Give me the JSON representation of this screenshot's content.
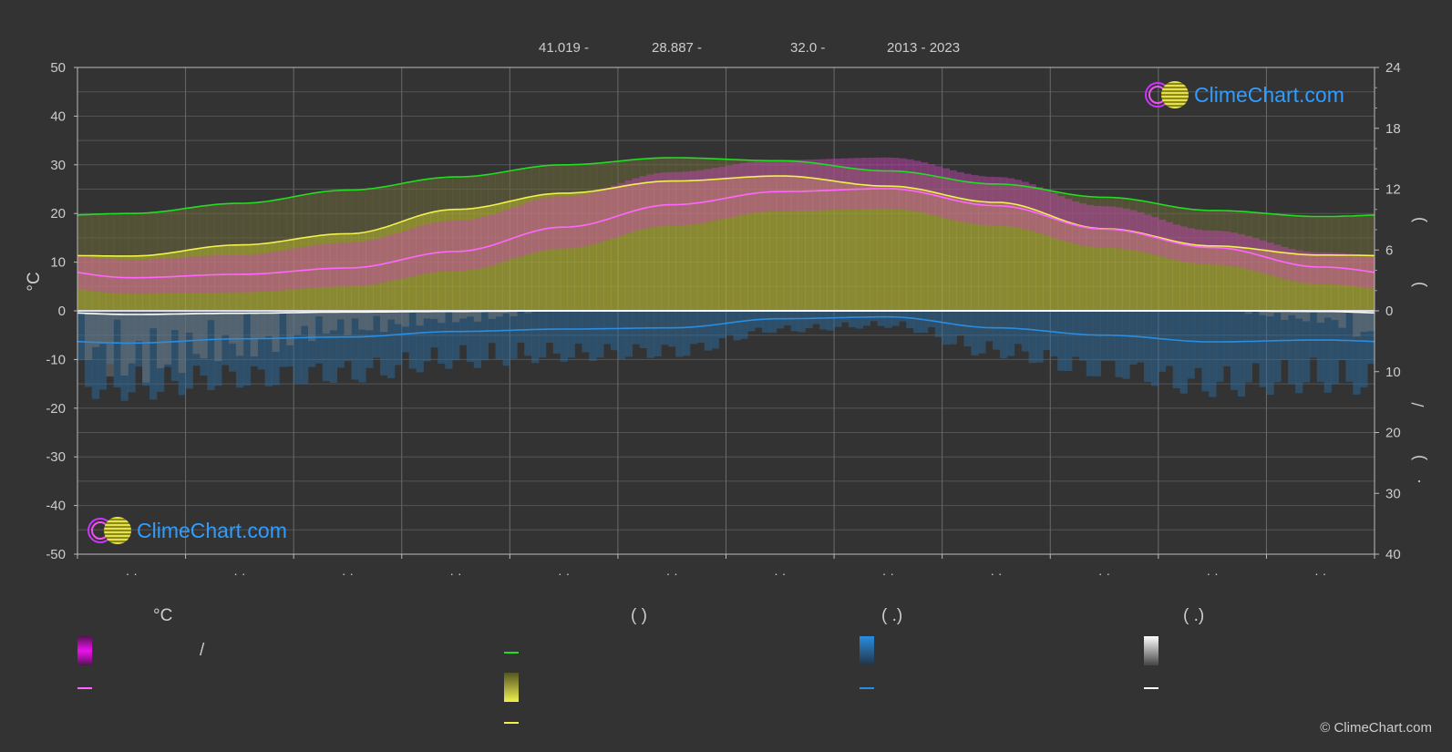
{
  "header": {
    "lat": "41.019 -",
    "lon": "28.887 -",
    "elev": "32.0 -",
    "years": "2013 - 2023"
  },
  "axes": {
    "left_unit": "°C",
    "left_ticks": [
      "50",
      "40",
      "30",
      "20",
      "10",
      "0",
      "-10",
      "-20",
      "-30",
      "-40",
      "-50"
    ],
    "right_top_ticks": [
      "24",
      "18",
      "12",
      "6",
      "0"
    ],
    "right_bottom_ticks": [
      "10",
      "20",
      "30",
      "40"
    ],
    "right_labels": [
      ")",
      ")",
      "/",
      ")",
      "·"
    ],
    "month_labels": [
      "· ·",
      "· ·",
      "· ·",
      "· ·",
      "· ·",
      "· ·",
      "· ·",
      "· ·",
      "· ·",
      "· ·",
      "· ·",
      "· ·"
    ]
  },
  "legend": {
    "col1_title": "°C",
    "col1_sep": "/",
    "col2_title": "(            )",
    "col3_title": "(    .)",
    "col4_title": "(    .)"
  },
  "logos": {
    "top": "ClimeChart.com",
    "bottom": "ClimeChart.com"
  },
  "copyright": "© ClimeChart.com",
  "colors": {
    "background": "#333333",
    "daylight": "#22dd22",
    "sunshine": "#f0f050",
    "temp_mean": "#ff66ff",
    "temp_range": "#dd00dd",
    "rain": "#2a8de0",
    "snow": "#ffffff",
    "sunshine_fill": "#a7a534"
  },
  "chart_data": {
    "type": "line",
    "ylim_left": [
      -50,
      50
    ],
    "ylim_right_top_hours": [
      0,
      24
    ],
    "ylim_right_bottom_mm": [
      0,
      40
    ],
    "x_months": [
      1,
      2,
      3,
      4,
      5,
      6,
      7,
      8,
      9,
      10,
      11,
      12
    ],
    "series": [
      {
        "key": "daylight",
        "axis": "hours",
        "values": [
          9.6,
          10.6,
          11.9,
          13.2,
          14.4,
          15.1,
          14.8,
          13.8,
          12.5,
          11.2,
          9.9,
          9.3
        ]
      },
      {
        "key": "sunshine",
        "axis": "hours",
        "values": [
          5.4,
          6.5,
          7.6,
          10.0,
          11.6,
          12.8,
          13.3,
          12.3,
          10.7,
          8.1,
          6.4,
          5.5
        ]
      },
      {
        "key": "temp_mean",
        "axis": "celsius",
        "values": [
          6.8,
          7.5,
          8.8,
          12.2,
          17.2,
          21.8,
          24.5,
          25.1,
          21.6,
          16.8,
          13.0,
          9.0
        ]
      },
      {
        "key": "rain",
        "axis": "mm",
        "values": [
          5.3,
          4.6,
          4.3,
          3.4,
          3.0,
          2.8,
          1.3,
          1.0,
          2.8,
          4.0,
          5.1,
          4.8
        ]
      },
      {
        "key": "snow",
        "axis": "mm",
        "values": [
          0.6,
          0.4,
          0.2,
          0.1,
          0.0,
          0.0,
          0.0,
          0.0,
          0.0,
          0.0,
          0.0,
          0.1
        ]
      }
    ],
    "temp_min_band": [
      3.5,
      3.8,
      5.0,
      8.2,
      12.8,
      17.5,
      20.5,
      21.0,
      17.5,
      13.0,
      9.5,
      5.5
    ],
    "temp_max_band": [
      10.5,
      11.5,
      14.0,
      18.5,
      23.5,
      28.5,
      31.0,
      31.5,
      27.5,
      21.5,
      16.5,
      12.0
    ]
  }
}
